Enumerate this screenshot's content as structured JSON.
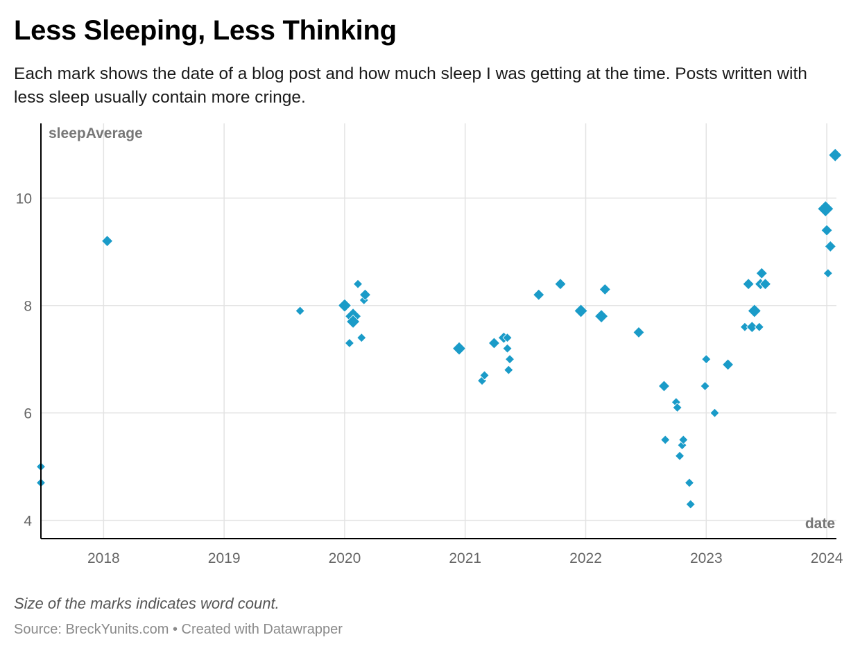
{
  "header": {
    "title": "Less Sleeping, Less Thinking",
    "subtitle": "Each mark shows the date of a blog post and how much sleep I was getting at the time. Posts written with less sleep usually contain more cringe."
  },
  "footer": {
    "note": "Size of the marks indicates word count.",
    "source": "Source: BreckYunits.com • Created with Datawrapper"
  },
  "colors": {
    "mark": "#1a9bc8",
    "grid": "#e3e3e3",
    "axis": "#000000"
  },
  "chart_data": {
    "type": "scatter",
    "title": "Less Sleeping, Less Thinking",
    "xlabel": "date",
    "ylabel": "sleepAverage",
    "xlim": [
      2017.48,
      2024.08
    ],
    "ylim": [
      3.66,
      11.39
    ],
    "x_ticks": [
      2018,
      2019,
      2020,
      2021,
      2022,
      2023,
      2024
    ],
    "x_tick_labels": [
      "2018",
      "2019",
      "2020",
      "2021",
      "2022",
      "2023",
      "2024"
    ],
    "y_ticks": [
      4,
      6,
      8,
      10
    ],
    "y_tick_labels": [
      "4",
      "6",
      "8",
      "10"
    ],
    "grid": true,
    "size_encoding": "word count",
    "points": [
      {
        "x": 2017.48,
        "y": 5.0,
        "size": "small"
      },
      {
        "x": 2017.48,
        "y": 4.7,
        "size": "small"
      },
      {
        "x": 2018.03,
        "y": 9.2,
        "size": "medium"
      },
      {
        "x": 2019.63,
        "y": 7.9,
        "size": "small"
      },
      {
        "x": 2020.0,
        "y": 8.0,
        "size": "large"
      },
      {
        "x": 2020.04,
        "y": 7.3,
        "size": "small"
      },
      {
        "x": 2020.07,
        "y": 7.8,
        "size": "xlarge"
      },
      {
        "x": 2020.07,
        "y": 7.7,
        "size": "large"
      },
      {
        "x": 2020.11,
        "y": 8.4,
        "size": "small"
      },
      {
        "x": 2020.14,
        "y": 7.4,
        "size": "small"
      },
      {
        "x": 2020.16,
        "y": 8.1,
        "size": "small"
      },
      {
        "x": 2020.17,
        "y": 8.2,
        "size": "medium"
      },
      {
        "x": 2020.95,
        "y": 7.2,
        "size": "large"
      },
      {
        "x": 2021.14,
        "y": 6.6,
        "size": "small"
      },
      {
        "x": 2021.16,
        "y": 6.7,
        "size": "small"
      },
      {
        "x": 2021.24,
        "y": 7.3,
        "size": "medium"
      },
      {
        "x": 2021.32,
        "y": 7.4,
        "size": "medium"
      },
      {
        "x": 2021.35,
        "y": 7.4,
        "size": "small"
      },
      {
        "x": 2021.35,
        "y": 7.2,
        "size": "small"
      },
      {
        "x": 2021.36,
        "y": 6.8,
        "size": "small"
      },
      {
        "x": 2021.37,
        "y": 7.0,
        "size": "small"
      },
      {
        "x": 2021.61,
        "y": 8.2,
        "size": "medium"
      },
      {
        "x": 2021.79,
        "y": 8.4,
        "size": "medium"
      },
      {
        "x": 2021.96,
        "y": 7.9,
        "size": "large"
      },
      {
        "x": 2022.13,
        "y": 7.8,
        "size": "large"
      },
      {
        "x": 2022.16,
        "y": 8.3,
        "size": "medium"
      },
      {
        "x": 2022.44,
        "y": 7.5,
        "size": "medium"
      },
      {
        "x": 2022.65,
        "y": 6.5,
        "size": "medium"
      },
      {
        "x": 2022.66,
        "y": 5.5,
        "size": "small"
      },
      {
        "x": 2022.75,
        "y": 6.2,
        "size": "small"
      },
      {
        "x": 2022.76,
        "y": 6.1,
        "size": "small"
      },
      {
        "x": 2022.78,
        "y": 5.2,
        "size": "small"
      },
      {
        "x": 2022.8,
        "y": 5.4,
        "size": "small"
      },
      {
        "x": 2022.81,
        "y": 5.5,
        "size": "small"
      },
      {
        "x": 2022.86,
        "y": 4.7,
        "size": "small"
      },
      {
        "x": 2022.87,
        "y": 4.3,
        "size": "small"
      },
      {
        "x": 2022.99,
        "y": 6.5,
        "size": "small"
      },
      {
        "x": 2023.0,
        "y": 7.0,
        "size": "small"
      },
      {
        "x": 2023.07,
        "y": 6.0,
        "size": "small"
      },
      {
        "x": 2023.18,
        "y": 6.9,
        "size": "medium"
      },
      {
        "x": 2023.32,
        "y": 7.6,
        "size": "small"
      },
      {
        "x": 2023.35,
        "y": 8.4,
        "size": "medium"
      },
      {
        "x": 2023.38,
        "y": 7.6,
        "size": "medium"
      },
      {
        "x": 2023.4,
        "y": 7.9,
        "size": "large"
      },
      {
        "x": 2023.44,
        "y": 7.6,
        "size": "small"
      },
      {
        "x": 2023.45,
        "y": 8.4,
        "size": "medium"
      },
      {
        "x": 2023.46,
        "y": 8.6,
        "size": "medium"
      },
      {
        "x": 2023.49,
        "y": 8.4,
        "size": "medium"
      },
      {
        "x": 2023.99,
        "y": 9.8,
        "size": "xlarge"
      },
      {
        "x": 2024.0,
        "y": 9.4,
        "size": "medium"
      },
      {
        "x": 2024.01,
        "y": 8.6,
        "size": "small"
      },
      {
        "x": 2024.03,
        "y": 9.1,
        "size": "medium"
      },
      {
        "x": 2024.07,
        "y": 10.8,
        "size": "large"
      }
    ]
  }
}
